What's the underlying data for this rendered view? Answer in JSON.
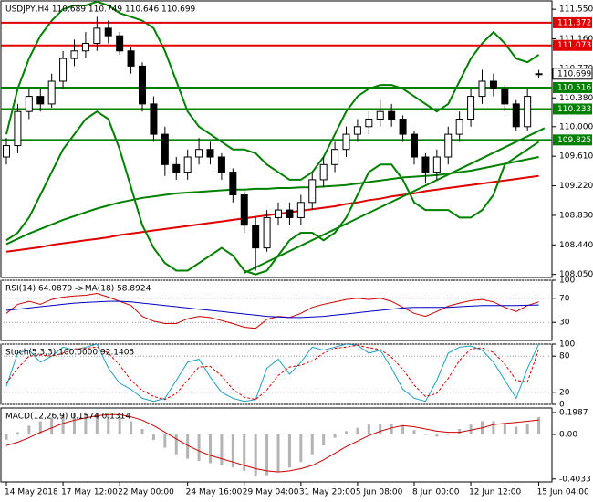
{
  "chart_data": [
    {
      "type": "candlestick",
      "title": "USDJPY,H4  110.689 110.749 110.646 110.699",
      "ylim": [
        108.01,
        111.66
      ],
      "yticks": [
        {
          "value": 111.55,
          "label": "111.550"
        },
        {
          "value": 111.16,
          "label": "111.160"
        },
        {
          "value": 110.77,
          "label": "110.770"
        },
        {
          "value": 110.38,
          "label": "110.380"
        },
        {
          "value": 110.0,
          "label": "110.000"
        },
        {
          "value": 109.61,
          "label": "109.610"
        },
        {
          "value": 109.22,
          "label": "109.220"
        },
        {
          "value": 108.83,
          "label": "108.830"
        },
        {
          "value": 108.44,
          "label": "108.440"
        },
        {
          "value": 108.05,
          "label": "108.050"
        }
      ],
      "grid": false,
      "open": [
        109.6,
        109.75,
        110.2,
        110.4,
        110.3,
        110.6,
        110.9,
        111.0,
        111.1,
        111.3,
        111.2,
        111.0,
        110.8,
        110.3,
        109.9,
        109.5,
        109.4,
        109.6,
        109.7,
        109.6,
        109.4,
        109.1,
        108.7,
        108.4,
        108.8,
        108.9,
        108.8,
        109.0,
        109.3,
        109.5,
        109.7,
        109.9,
        110.0,
        110.1,
        110.2,
        110.1,
        109.9,
        109.6,
        109.4,
        109.6,
        109.9,
        110.1,
        110.4,
        110.6,
        110.5,
        110.3,
        110.0,
        110.689
      ],
      "high": [
        109.85,
        110.3,
        110.5,
        110.5,
        110.7,
        111.0,
        111.15,
        111.25,
        111.45,
        111.4,
        111.25,
        111.05,
        110.85,
        110.4,
        110.0,
        109.6,
        109.7,
        109.85,
        109.8,
        109.65,
        109.45,
        109.15,
        108.8,
        108.9,
        109.0,
        109.0,
        109.1,
        109.4,
        109.6,
        109.8,
        110.0,
        110.1,
        110.2,
        110.35,
        110.3,
        110.15,
        109.95,
        109.65,
        109.7,
        110.0,
        110.2,
        110.5,
        110.75,
        110.7,
        110.55,
        110.35,
        110.5,
        110.749
      ],
      "low": [
        109.5,
        109.65,
        110.1,
        110.2,
        110.25,
        110.5,
        110.8,
        110.9,
        111.0,
        111.1,
        110.95,
        110.7,
        110.2,
        109.8,
        109.35,
        109.3,
        109.3,
        109.5,
        109.5,
        109.3,
        109.0,
        108.6,
        108.1,
        108.35,
        108.7,
        108.7,
        108.7,
        108.9,
        109.2,
        109.4,
        109.6,
        109.8,
        109.9,
        110.0,
        110.0,
        109.8,
        109.5,
        109.25,
        109.3,
        109.5,
        109.8,
        110.0,
        110.3,
        110.4,
        110.2,
        109.95,
        109.95,
        110.646
      ],
      "close": [
        109.75,
        110.2,
        110.4,
        110.3,
        110.6,
        110.9,
        111.0,
        111.1,
        111.3,
        111.2,
        111.0,
        110.8,
        110.3,
        109.9,
        109.5,
        109.4,
        109.6,
        109.7,
        109.6,
        109.4,
        109.1,
        108.7,
        108.4,
        108.8,
        108.9,
        108.8,
        109.0,
        109.3,
        109.5,
        109.7,
        109.9,
        110.0,
        110.1,
        110.2,
        110.1,
        109.9,
        109.6,
        109.4,
        109.6,
        109.9,
        110.1,
        110.4,
        110.6,
        110.5,
        110.3,
        110.0,
        110.4,
        110.699
      ],
      "series": [
        {
          "type": "line",
          "color": "#e00000",
          "width": 2,
          "values": [
            108.35,
            108.37,
            108.39,
            108.41,
            108.44,
            108.46,
            108.48,
            108.5,
            108.52,
            108.54,
            108.57,
            108.59,
            108.61,
            108.63,
            108.65,
            108.67,
            108.69,
            108.71,
            108.73,
            108.75,
            108.77,
            108.79,
            108.81,
            108.83,
            108.85,
            108.87,
            108.89,
            108.91,
            108.93,
            108.95,
            108.98,
            109.0,
            109.03,
            109.05,
            109.08,
            109.1,
            109.12,
            109.15,
            109.17,
            109.19,
            109.21,
            109.23,
            109.25,
            109.27,
            109.29,
            109.31,
            109.33,
            109.35
          ]
        },
        {
          "type": "line",
          "color": "#008000",
          "width": 2,
          "values": [
            108.45,
            108.52,
            108.59,
            108.65,
            108.71,
            108.77,
            108.82,
            108.87,
            108.92,
            108.96,
            109.0,
            109.03,
            109.06,
            109.08,
            109.1,
            109.12,
            109.13,
            109.14,
            109.15,
            109.16,
            109.17,
            109.17,
            109.18,
            109.18,
            109.19,
            109.19,
            109.2,
            109.2,
            109.21,
            109.22,
            109.23,
            109.25,
            109.27,
            109.29,
            109.31,
            109.33,
            109.34,
            109.35,
            109.36,
            109.38,
            109.4,
            109.42,
            109.45,
            109.48,
            109.51,
            109.54,
            109.57,
            109.6
          ]
        },
        {
          "type": "line",
          "color": "#008000",
          "width": 2,
          "values": [
            109.9,
            110.5,
            110.9,
            111.2,
            111.4,
            111.55,
            111.6,
            111.6,
            111.65,
            111.6,
            111.5,
            111.45,
            111.4,
            111.3,
            111.0,
            110.6,
            110.2,
            110.0,
            109.9,
            109.8,
            109.7,
            109.7,
            109.65,
            109.5,
            109.4,
            109.3,
            109.3,
            109.4,
            109.6,
            109.9,
            110.2,
            110.4,
            110.5,
            110.55,
            110.55,
            110.5,
            110.4,
            110.3,
            110.2,
            110.3,
            110.6,
            110.9,
            111.1,
            111.25,
            111.1,
            110.9,
            110.85,
            110.95
          ]
        },
        {
          "type": "line",
          "color": "#008000",
          "width": 2,
          "values": [
            108.5,
            108.6,
            108.8,
            109.1,
            109.4,
            109.7,
            109.9,
            110.1,
            110.2,
            110.1,
            109.7,
            109.2,
            108.7,
            108.4,
            108.2,
            108.1,
            108.1,
            108.2,
            108.3,
            108.4,
            108.3,
            108.1,
            108.05,
            108.1,
            108.3,
            108.5,
            108.6,
            108.6,
            108.5,
            108.6,
            108.8,
            109.1,
            109.4,
            109.5,
            109.5,
            109.3,
            109.0,
            108.9,
            108.9,
            108.9,
            108.8,
            108.8,
            108.9,
            109.1,
            109.5,
            109.6,
            109.7,
            109.8
          ]
        }
      ],
      "trendlines": [
        {
          "color": "#008000",
          "x": [
            21,
            47.5
          ],
          "y": [
            108.07,
            109.98
          ]
        }
      ],
      "levels": [
        {
          "value": 111.372,
          "color": "#e00000"
        },
        {
          "value": 111.073,
          "color": "#e00000"
        },
        {
          "value": 110.516,
          "color": "#008000"
        },
        {
          "value": 110.233,
          "color": "#008000"
        },
        {
          "value": 109.825,
          "color": "#008000"
        }
      ]
    },
    {
      "type": "line",
      "title": "RSI(14) 64.0879 ->MA(18) 58.8924",
      "ylim": [
        0,
        100
      ],
      "yticks": [
        100,
        70,
        30
      ],
      "grid": true,
      "series": [
        {
          "type": "line",
          "color": "#d00000",
          "width": 1,
          "values": [
            45,
            60,
            65,
            60,
            68,
            72,
            74,
            75,
            78,
            72,
            65,
            58,
            40,
            32,
            28,
            28,
            36,
            40,
            38,
            33,
            28,
            22,
            20,
            35,
            40,
            38,
            45,
            55,
            60,
            64,
            68,
            70,
            68,
            70,
            65,
            55,
            45,
            40,
            48,
            57,
            62,
            66,
            68,
            64,
            55,
            48,
            58,
            64.0879
          ]
        },
        {
          "type": "line",
          "color": "#0000c0",
          "width": 1,
          "values": [
            50,
            52,
            54,
            56,
            58,
            60,
            62,
            63,
            64,
            65,
            65,
            64,
            62,
            60,
            58,
            56,
            54,
            52,
            50,
            48,
            46,
            44,
            42,
            40,
            39,
            38,
            38,
            39,
            40,
            42,
            44,
            46,
            48,
            50,
            52,
            54,
            55,
            55,
            55,
            55,
            56,
            57,
            58,
            58,
            58,
            58,
            58.5,
            58.8924
          ]
        }
      ]
    },
    {
      "type": "line",
      "title": "Stoch(5,3,3) 100.0000 92.1405",
      "ylim": [
        0,
        100
      ],
      "yticks": [
        100,
        80,
        20,
        0
      ],
      "grid": true,
      "series": [
        {
          "type": "line",
          "color": "#20a0c0",
          "width": 1,
          "values": [
            30,
            85,
            90,
            70,
            80,
            95,
            90,
            95,
            100,
            60,
            35,
            25,
            10,
            5,
            10,
            40,
            70,
            75,
            45,
            20,
            10,
            5,
            8,
            60,
            75,
            50,
            70,
            95,
            90,
            95,
            100,
            98,
            85,
            90,
            60,
            25,
            10,
            5,
            40,
            85,
            95,
            97,
            90,
            70,
            40,
            10,
            60,
            100
          ]
        },
        {
          "type": "line",
          "color": "#d00000",
          "width": 1,
          "dash": true,
          "values": [
            35,
            60,
            80,
            82,
            80,
            85,
            92,
            93,
            95,
            85,
            65,
            40,
            23,
            13,
            8,
            18,
            40,
            62,
            63,
            47,
            25,
            12,
            8,
            24,
            48,
            62,
            65,
            72,
            85,
            93,
            95,
            98,
            94,
            91,
            78,
            58,
            32,
            13,
            18,
            43,
            73,
            92,
            94,
            86,
            67,
            40,
            37,
            92.1405
          ]
        }
      ]
    },
    {
      "type": "bar",
      "title": "MACD(12,26,9) 0.1574 0.1314",
      "ylim": [
        -0.43,
        0.24
      ],
      "yticks": [
        0.1987,
        {
          "value": 0,
          "label": "0.00"
        },
        -0.4033
      ],
      "grid": false,
      "categories": [
        "14 May 2018",
        null,
        null,
        null,
        null,
        "17 May 12:00",
        null,
        null,
        null,
        null,
        "22 May 00:00",
        null,
        null,
        null,
        null,
        null,
        "24 May 16:00",
        null,
        null,
        null,
        null,
        "29 May 04:00",
        null,
        null,
        null,
        null,
        "31 May 20:00",
        null,
        null,
        null,
        null,
        "5 Jun 08:00",
        null,
        null,
        null,
        null,
        "8 Jun 00:00",
        null,
        null,
        null,
        null,
        "12 Jun 12:00",
        null,
        null,
        null,
        null,
        null,
        "15 Jun 04:00"
      ],
      "series": [
        {
          "type": "bar",
          "color": "#b4b4b4",
          "values": [
            -0.05,
            0.02,
            0.08,
            0.12,
            0.15,
            0.18,
            0.19,
            0.2,
            0.2,
            0.19,
            0.16,
            0.12,
            0.05,
            -0.05,
            -0.12,
            -0.18,
            -0.22,
            -0.24,
            -0.26,
            -0.28,
            -0.3,
            -0.33,
            -0.38,
            -0.37,
            -0.34,
            -0.3,
            -0.25,
            -0.18,
            -0.1,
            -0.03,
            0.03,
            0.06,
            0.09,
            0.1,
            0.1,
            0.08,
            0.04,
            0.0,
            -0.02,
            0.0,
            0.05,
            0.09,
            0.12,
            0.12,
            0.1,
            0.07,
            0.1,
            0.1574
          ]
        },
        {
          "type": "line",
          "color": "#d00000",
          "width": 1,
          "values": [
            -0.1,
            -0.07,
            -0.03,
            0.02,
            0.06,
            0.1,
            0.13,
            0.15,
            0.17,
            0.18,
            0.18,
            0.16,
            0.13,
            0.08,
            0.02,
            -0.04,
            -0.1,
            -0.15,
            -0.19,
            -0.22,
            -0.25,
            -0.28,
            -0.31,
            -0.33,
            -0.34,
            -0.33,
            -0.31,
            -0.28,
            -0.23,
            -0.17,
            -0.11,
            -0.06,
            -0.01,
            0.03,
            0.06,
            0.08,
            0.07,
            0.05,
            0.03,
            0.02,
            0.02,
            0.04,
            0.06,
            0.09,
            0.1,
            0.11,
            0.12,
            0.1314
          ]
        }
      ]
    }
  ]
}
